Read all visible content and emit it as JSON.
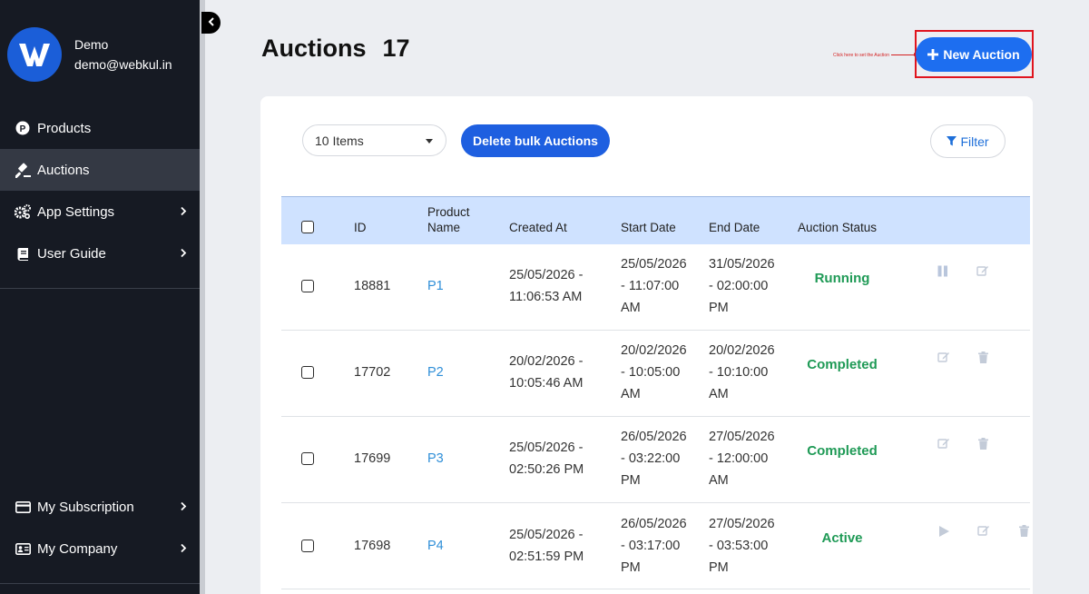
{
  "user": {
    "name": "Demo",
    "email": "demo@webkul.in"
  },
  "nav": {
    "top": [
      {
        "label": "Products",
        "icon": "product-p-icon"
      },
      {
        "label": "Auctions",
        "icon": "gavel-icon"
      },
      {
        "label": "App Settings",
        "icon": "gears-icon"
      },
      {
        "label": "User Guide",
        "icon": "book-icon"
      }
    ],
    "bottom": [
      {
        "label": "My Subscription",
        "icon": "credit-card-icon"
      },
      {
        "label": "My Company",
        "icon": "id-card-icon"
      }
    ]
  },
  "header": {
    "title": "Auctions",
    "count": "17",
    "new_button": "New Auction",
    "hint": "Click here to set the Auction"
  },
  "toolbar": {
    "items_select": "10 Items",
    "bulk_delete": "Delete bulk Auctions",
    "filter": "Filter"
  },
  "table": {
    "headers": {
      "id": "ID",
      "product_name_1": "Product",
      "product_name_2": "Name",
      "created": "Created At",
      "start": "Start Date",
      "end": "End Date",
      "status": "Auction Status"
    },
    "rows": [
      {
        "id": "18881",
        "product": "P1",
        "created": [
          "25/05/2026 -",
          "11:06:53 AM"
        ],
        "start": [
          "25/05/2026",
          "- 11:07:00",
          "AM"
        ],
        "end": [
          "31/05/2026",
          "- 02:00:00",
          "PM"
        ],
        "status": "Running"
      },
      {
        "id": "17702",
        "product": "P2",
        "created": [
          "20/02/2026 -",
          "10:05:46 AM"
        ],
        "start": [
          "20/02/2026",
          "- 10:05:00",
          "AM"
        ],
        "end": [
          "20/02/2026",
          "- 10:10:00",
          "AM"
        ],
        "status": "Completed"
      },
      {
        "id": "17699",
        "product": "P3",
        "created": [
          "25/05/2026 -",
          "02:50:26 PM"
        ],
        "start": [
          "26/05/2026",
          "- 03:22:00",
          "PM"
        ],
        "end": [
          "27/05/2026",
          "- 12:00:00",
          "AM"
        ],
        "status": "Completed"
      },
      {
        "id": "17698",
        "product": "P4",
        "created": [
          "25/05/2026 -",
          "02:51:59 PM"
        ],
        "start": [
          "26/05/2026",
          "- 03:17:00",
          "PM"
        ],
        "end": [
          "27/05/2026",
          "- 03:53:00",
          "PM"
        ],
        "status": "Active"
      }
    ]
  },
  "colors": {
    "sidebar_bg": "#161a23",
    "accent_blue": "#1d6ef0",
    "status_green": "#1f9a56",
    "header_row_bg": "#cfe2ff",
    "highlight_red": "#e0141e"
  }
}
